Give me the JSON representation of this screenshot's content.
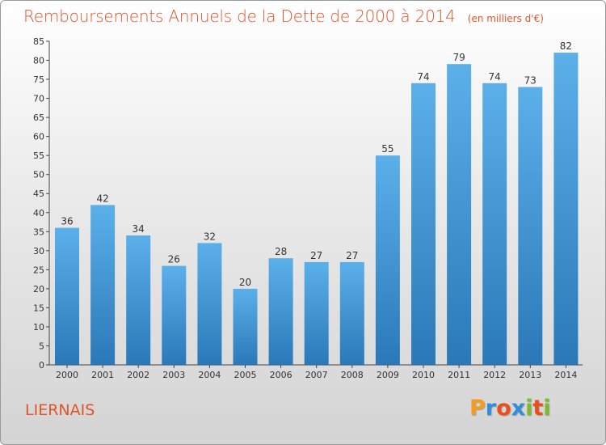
{
  "header": {
    "title": "Remboursements Annuels de la Dette de 2000 à 2014",
    "unit_note": "(en milliers d'€)"
  },
  "footer": {
    "commune": "LIERNAIS",
    "logo_text": "Proxiti",
    "logo_colors": [
      "#f39c1f",
      "#2f8fd8",
      "#e94e1b",
      "#2f8fd8",
      "#7cbb2a",
      "#e94e1b",
      "#7cbb2a"
    ]
  },
  "chart_data": {
    "type": "bar",
    "title": "Remboursements Annuels de la Dette de 2000 à 2014",
    "subtitle": "(en milliers d'€)",
    "xlabel": "",
    "ylabel": "",
    "categories": [
      "2000",
      "2001",
      "2002",
      "2003",
      "2004",
      "2005",
      "2006",
      "2007",
      "2008",
      "2009",
      "2010",
      "2011",
      "2012",
      "2013",
      "2014"
    ],
    "values": [
      36,
      42,
      34,
      26,
      32,
      20,
      28,
      27,
      27,
      55,
      74,
      79,
      74,
      73,
      82
    ],
    "ylim": [
      0,
      85
    ],
    "yticks": [
      0,
      5,
      10,
      15,
      20,
      25,
      30,
      35,
      40,
      45,
      50,
      55,
      60,
      65,
      70,
      75,
      80,
      85
    ],
    "grid": false,
    "legend": "none",
    "bar_color": "#4a9fde",
    "bar_color_dark": "#2a78b8",
    "data_labels": true
  }
}
